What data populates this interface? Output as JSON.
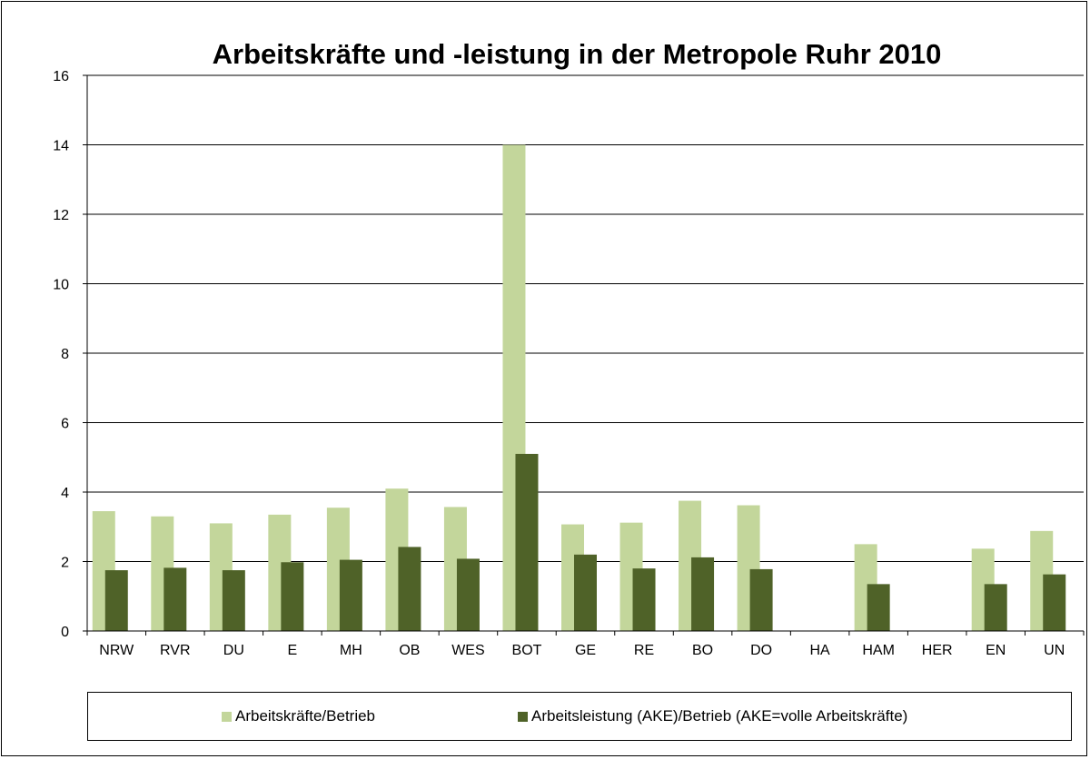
{
  "chart_data": {
    "type": "bar",
    "title": "Arbeitskräfte und -leistung in der Metropole Ruhr 2010",
    "xlabel": "",
    "ylabel": "",
    "ylim": [
      0,
      16
    ],
    "yticks": [
      0,
      2,
      4,
      6,
      8,
      10,
      12,
      14,
      16
    ],
    "grid": true,
    "legend_position": "bottom",
    "categories": [
      "NRW",
      "RVR",
      "DU",
      "E",
      "MH",
      "OB",
      "WES",
      "BOT",
      "GE",
      "RE",
      "BO",
      "DO",
      "HA",
      "HAM",
      "HER",
      "EN",
      "UN"
    ],
    "series": [
      {
        "name": "Arbeitskräfte/Betrieb",
        "color": "#c3d69b",
        "values": [
          3.45,
          3.3,
          3.1,
          3.35,
          3.55,
          4.1,
          3.57,
          14.0,
          3.07,
          3.12,
          3.75,
          3.62,
          null,
          2.5,
          null,
          2.37,
          2.88
        ]
      },
      {
        "name": "Arbeitsleistung (AKE)/Betrieb (AKE=volle Arbeitskräfte)",
        "color": "#4f6228",
        "values": [
          1.75,
          1.82,
          1.75,
          1.98,
          2.05,
          2.42,
          2.08,
          5.1,
          2.2,
          1.8,
          2.12,
          1.78,
          null,
          1.35,
          null,
          1.35,
          1.63
        ]
      }
    ]
  }
}
